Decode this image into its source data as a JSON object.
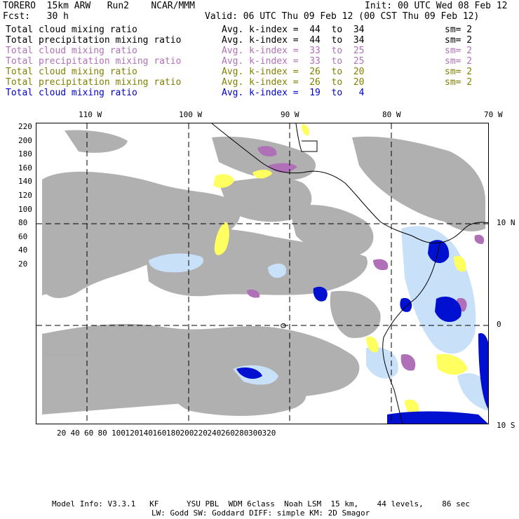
{
  "header": {
    "model": "TORERO  15km ARW   Run2    NCAR/MMM",
    "init": "Init: 00 UTC Wed 08 Feb 12",
    "fcst": "Fcst:   30 h",
    "valid": "Valid: 06 UTC Thu 09 Feb 12 (00 CST Thu 09 Feb 12)"
  },
  "legend": [
    {
      "field": "Total cloud mixing ratio",
      "kindex": "Avg. k-index =  44  to  34",
      "sm": "sm= 2",
      "color": "#000000"
    },
    {
      "field": "Total precipitation mixing ratio",
      "kindex": "Avg. k-index =  44  to  34",
      "sm": "sm= 2",
      "color": "#000000"
    },
    {
      "field": "Total cloud mixing ratio",
      "kindex": "Avg. k-index =  33  to  25",
      "sm": "sm= 2",
      "color": "#b070b8"
    },
    {
      "field": "Total precipitation mixing ratio",
      "kindex": "Avg. k-index =  33  to  25",
      "sm": "sm= 2",
      "color": "#b070b8"
    },
    {
      "field": "Total cloud mixing ratio",
      "kindex": "Avg. k-index =  26  to  20",
      "sm": "sm= 2",
      "color": "#808000"
    },
    {
      "field": "Total precipitation mixing ratio",
      "kindex": "Avg. k-index =  26  to  20",
      "sm": "sm= 2",
      "color": "#808000"
    },
    {
      "field": "Total cloud mixing ratio",
      "kindex": "Avg. k-index =  19  to   4",
      "sm": "",
      "color": "#0000d0"
    }
  ],
  "map": {
    "lon_labels": [
      "110 W",
      "100 W",
      "90 W",
      "80 W",
      "70 W"
    ],
    "lat_labels": [
      "10 N",
      "0",
      "10 S"
    ],
    "x_ticks": [
      "20",
      "40",
      "60",
      "80",
      "100",
      "120",
      "140",
      "160",
      "180",
      "200",
      "220",
      "240",
      "260",
      "280",
      "300",
      "320"
    ],
    "y_ticks": [
      "220",
      "200",
      "180",
      "160",
      "140",
      "120",
      "100",
      "80",
      "60",
      "40",
      "20"
    ],
    "colors": {
      "cloud_gray": "#a8a8a8",
      "light_blue": "#c8e0f8",
      "blue": "#0010d0",
      "purple": "#b070b8",
      "yellow": "#ffff60",
      "coast": "#000000"
    }
  },
  "footer": {
    "line1": "Model Info: V3.3.1   KF      YSU PBL  WDM 6class  Noah LSM  15 km,    44 levels,    86 sec",
    "line2": "LW: Godd SW: Goddard DIFF: simple KM: 2D Smagor"
  }
}
